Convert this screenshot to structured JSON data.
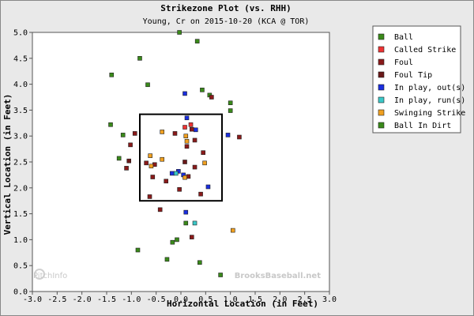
{
  "chart_data": {
    "type": "scatter",
    "title": "Strikezone Plot (vs. RHH)",
    "subtitle": "Young, Cr on 2015-10-20 (KCA @ TOR)",
    "xlabel": "Horizontal Location (in Feet)",
    "ylabel": "Vertical Location (in Feet)",
    "xlim": [
      -3.0,
      3.0
    ],
    "ylim": [
      0.0,
      5.0
    ],
    "x_ticks": [
      "-3.0",
      "-2.5",
      "-2.0",
      "-1.5",
      "-1.0",
      "-0.5",
      "0.0",
      "0.5",
      "1.0",
      "1.5",
      "2.0",
      "2.5",
      "3.0"
    ],
    "y_ticks": [
      "0.0",
      "0.5",
      "1.0",
      "1.5",
      "2.0",
      "2.5",
      "3.0",
      "3.5",
      "4.0",
      "4.5",
      "5.0"
    ],
    "strike_zone": {
      "x": [
        -0.83,
        0.83
      ],
      "y": [
        1.75,
        3.42
      ]
    },
    "legend_position": "right",
    "watermarks": [
      "PitchInfo",
      "BrooksBaseball.net"
    ],
    "series": [
      {
        "name": "Ball",
        "color": "#3a8a1a",
        "points": [
          [
            -0.03,
            5.0
          ],
          [
            0.33,
            4.83
          ],
          [
            -0.83,
            4.5
          ],
          [
            -1.4,
            4.18
          ],
          [
            -0.67,
            3.99
          ],
          [
            0.43,
            3.89
          ],
          [
            0.58,
            3.79
          ],
          [
            1.0,
            3.64
          ],
          [
            1.0,
            3.49
          ],
          [
            -1.42,
            3.22
          ],
          [
            -1.17,
            3.02
          ],
          [
            -1.25,
            2.57
          ],
          [
            0.1,
            1.32
          ],
          [
            -0.08,
            1.0
          ],
          [
            -0.17,
            0.95
          ],
          [
            -0.87,
            0.8
          ],
          [
            -0.28,
            0.62
          ],
          [
            0.38,
            0.56
          ],
          [
            0.8,
            0.32
          ]
        ]
      },
      {
        "name": "Called Strike",
        "color": "#ee3333",
        "points": [
          [
            0.08,
            3.17
          ],
          [
            0.2,
            3.22
          ]
        ]
      },
      {
        "name": "Foul",
        "color": "#8a1a1a",
        "points": [
          [
            -0.93,
            3.05
          ],
          [
            -0.12,
            3.05
          ],
          [
            0.22,
            3.13
          ],
          [
            0.12,
            2.8
          ],
          [
            0.28,
            2.92
          ],
          [
            1.18,
            2.98
          ],
          [
            -1.02,
            2.83
          ],
          [
            -0.7,
            2.48
          ],
          [
            0.45,
            2.68
          ],
          [
            -0.53,
            2.45
          ],
          [
            -1.1,
            2.38
          ],
          [
            0.28,
            2.4
          ],
          [
            -0.3,
            2.13
          ],
          [
            -0.57,
            2.21
          ],
          [
            0.15,
            2.22
          ],
          [
            0.4,
            1.88
          ],
          [
            -0.03,
            1.97
          ],
          [
            -0.42,
            1.58
          ],
          [
            0.22,
            1.05
          ],
          [
            0.62,
            3.75
          ],
          [
            -0.63,
            1.83
          ]
        ]
      },
      {
        "name": "Foul Tip",
        "color": "#6a1818",
        "points": [
          [
            -1.05,
            2.52
          ],
          [
            0.08,
            2.5
          ]
        ]
      },
      {
        "name": "In play, out(s)",
        "color": "#1a2ee0",
        "points": [
          [
            0.08,
            3.82
          ],
          [
            0.12,
            3.35
          ],
          [
            0.3,
            3.12
          ],
          [
            0.95,
            3.02
          ],
          [
            -0.05,
            2.32
          ],
          [
            -0.18,
            2.28
          ],
          [
            0.05,
            2.25
          ],
          [
            0.55,
            2.02
          ],
          [
            0.1,
            1.53
          ]
        ]
      },
      {
        "name": "In play, run(s)",
        "color": "#3ac8c8",
        "points": [
          [
            0.28,
            1.32
          ],
          [
            -0.1,
            2.28
          ]
        ]
      },
      {
        "name": "Swinging Strike",
        "color": "#f0a020",
        "points": [
          [
            -0.38,
            3.08
          ],
          [
            0.1,
            3.0
          ],
          [
            -0.62,
            2.62
          ],
          [
            0.12,
            2.9
          ],
          [
            -0.38,
            2.55
          ],
          [
            0.48,
            2.48
          ],
          [
            -0.6,
            2.42
          ],
          [
            0.08,
            2.2
          ],
          [
            1.05,
            1.18
          ]
        ]
      },
      {
        "name": "Ball In Dirt",
        "color": "#3a8a1a",
        "points": []
      }
    ]
  }
}
